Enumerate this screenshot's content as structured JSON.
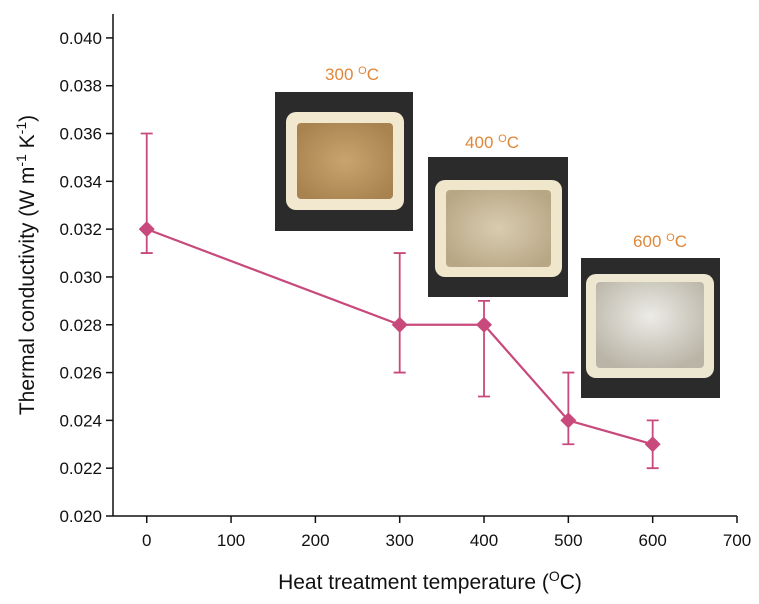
{
  "chart_data": {
    "type": "line",
    "xlabel": [
      "Heat treatment temperature (",
      "O",
      "C)"
    ],
    "ylabel": [
      "Thermal conductivity (W m",
      "-1",
      " K",
      "-1",
      ")"
    ],
    "x": [
      0,
      300,
      400,
      500,
      600
    ],
    "series": [
      {
        "color": "#c8497b",
        "values": [
          0.032,
          0.028,
          0.028,
          0.024,
          0.023
        ],
        "err_minus": [
          0.001,
          0.002,
          0.003,
          0.001,
          0.001
        ],
        "err_plus": [
          0.004,
          0.003,
          0.001,
          0.002,
          0.001
        ]
      }
    ],
    "xlim": [
      -40,
      700
    ],
    "ylim": [
      0.02,
      0.041
    ],
    "xticks": [
      0,
      100,
      200,
      300,
      400,
      500,
      600,
      700
    ],
    "yticks": [
      {
        "value": 0.02,
        "label": "0.020"
      },
      {
        "value": 0.022,
        "label": "0.022"
      },
      {
        "value": 0.024,
        "label": "0.024"
      },
      {
        "value": 0.026,
        "label": "0.026"
      },
      {
        "value": 0.028,
        "label": "0.028"
      },
      {
        "value": 0.03,
        "label": "0.030"
      },
      {
        "value": 0.032,
        "label": "0.032"
      },
      {
        "value": 0.034,
        "label": "0.034"
      },
      {
        "value": 0.036,
        "label": "0.036"
      },
      {
        "value": 0.038,
        "label": "0.038"
      },
      {
        "value": 0.04,
        "label": "0.040"
      }
    ],
    "annotations": [
      [
        "300 ",
        "O",
        "C"
      ],
      [
        "400 ",
        "O",
        "C"
      ],
      [
        "600 ",
        "O",
        "C"
      ]
    ]
  }
}
